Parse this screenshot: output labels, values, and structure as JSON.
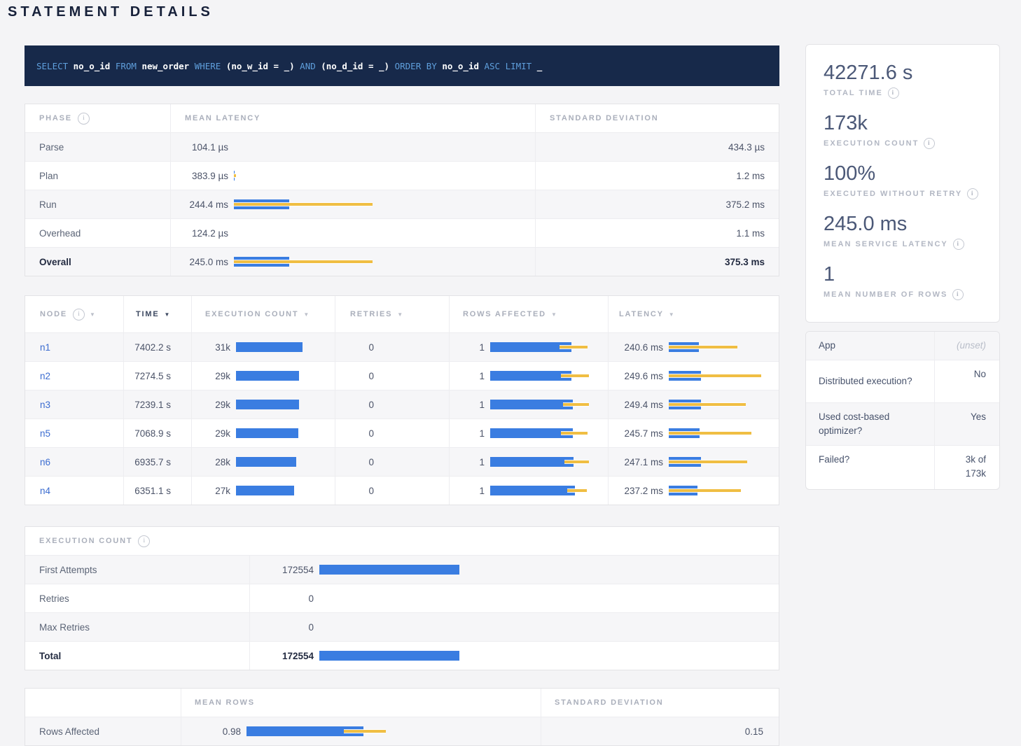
{
  "page": {
    "title": "STATEMENT DETAILS"
  },
  "colors": {
    "bar_mean_blue": "#3a7de1",
    "bar_stddev_yellow": "#f0be43",
    "node_link_blue": "#3b6cd0",
    "sql_background_navy": "#17294a",
    "sql_keyword_blue": "#5f9fdc"
  },
  "query": {
    "tokens": [
      {
        "text": "SELECT",
        "cls": "kw"
      },
      {
        "text": "no_o_id",
        "cls": "id"
      },
      {
        "text": "FROM",
        "cls": "kw"
      },
      {
        "text": "new_order",
        "cls": "id"
      },
      {
        "text": "WHERE",
        "cls": "kw"
      },
      {
        "text": "(no_w_id = _)",
        "cls": "id"
      },
      {
        "text": "AND",
        "cls": "kw"
      },
      {
        "text": "(no_d_id = _)",
        "cls": "id"
      },
      {
        "text": "ORDER BY",
        "cls": "kw"
      },
      {
        "text": "no_o_id",
        "cls": "id"
      },
      {
        "text": "ASC",
        "cls": "kw"
      },
      {
        "text": "LIMIT",
        "cls": "kw"
      },
      {
        "text": "_",
        "cls": "id"
      }
    ]
  },
  "phases": {
    "headers": {
      "phase": "PHASE",
      "mean": "MEAN LATENCY",
      "std": "STANDARD DEVIATION"
    },
    "rows": [
      {
        "label": "Parse",
        "mean": "104.1 µs",
        "std": "434.3 µs",
        "bar": {
          "blue": 0,
          "dev_l": 0,
          "dev_w": 0
        }
      },
      {
        "label": "Plan",
        "mean": "383.9 µs",
        "std": "1.2 ms",
        "bar": {
          "blue": 0.2,
          "dev_l": 0,
          "dev_w": 0.8
        }
      },
      {
        "label": "Run",
        "mean": "244.4 ms",
        "std": "375.2 ms",
        "bar": {
          "blue": 19.5,
          "dev_l": 0,
          "dev_w": 49
        }
      },
      {
        "label": "Overhead",
        "mean": "124.2 µs",
        "std": "1.1 ms",
        "bar": {
          "blue": 0,
          "dev_l": 0,
          "dev_w": 0
        }
      },
      {
        "label": "Overall",
        "mean": "245.0 ms",
        "std": "375.3 ms",
        "bar": {
          "blue": 19.5,
          "dev_l": 0,
          "dev_w": 49
        }
      }
    ]
  },
  "nodes": {
    "headers": {
      "node": "NODE",
      "time": "TIME",
      "exec": "EXECUTION COUNT",
      "retries": "RETRIES",
      "rows": "ROWS AFFECTED",
      "latency": "LATENCY"
    },
    "rows": [
      {
        "node": "n1",
        "time": "7402.2 s",
        "exec": "31k",
        "exec_pct": 88,
        "retries": "0",
        "rows": "1",
        "rows_bar": {
          "blue": 76,
          "dev_l": 65,
          "dev_w": 26
        },
        "latency": "240.6 ms",
        "lat_bar": {
          "blue": 29,
          "dev_l": 0,
          "dev_w": 67
        }
      },
      {
        "node": "n2",
        "time": "7274.5 s",
        "exec": "29k",
        "exec_pct": 83,
        "retries": "0",
        "rows": "1",
        "rows_bar": {
          "blue": 76,
          "dev_l": 66,
          "dev_w": 26
        },
        "latency": "249.6 ms",
        "lat_bar": {
          "blue": 31,
          "dev_l": 0,
          "dev_w": 90
        }
      },
      {
        "node": "n3",
        "time": "7239.1 s",
        "exec": "29k",
        "exec_pct": 83,
        "retries": "0",
        "rows": "1",
        "rows_bar": {
          "blue": 77,
          "dev_l": 68,
          "dev_w": 24
        },
        "latency": "249.4 ms",
        "lat_bar": {
          "blue": 31,
          "dev_l": 0,
          "dev_w": 75
        }
      },
      {
        "node": "n5",
        "time": "7068.9 s",
        "exec": "29k",
        "exec_pct": 82,
        "retries": "0",
        "rows": "1",
        "rows_bar": {
          "blue": 77,
          "dev_l": 66,
          "dev_w": 25
        },
        "latency": "245.7 ms",
        "lat_bar": {
          "blue": 30,
          "dev_l": 0,
          "dev_w": 80
        }
      },
      {
        "node": "n6",
        "time": "6935.7 s",
        "exec": "28k",
        "exec_pct": 80,
        "retries": "0",
        "rows": "1",
        "rows_bar": {
          "blue": 78,
          "dev_l": 69,
          "dev_w": 23
        },
        "latency": "247.1 ms",
        "lat_bar": {
          "blue": 31,
          "dev_l": 0,
          "dev_w": 76
        }
      },
      {
        "node": "n4",
        "time": "6351.1 s",
        "exec": "27k",
        "exec_pct": 77,
        "retries": "0",
        "rows": "1",
        "rows_bar": {
          "blue": 79,
          "dev_l": 72,
          "dev_w": 18
        },
        "latency": "237.2 ms",
        "lat_bar": {
          "blue": 28,
          "dev_l": 0,
          "dev_w": 70
        }
      }
    ]
  },
  "exec_counts": {
    "title": "EXECUTION COUNT",
    "rows": [
      {
        "label": "First Attempts",
        "value": "172554",
        "bar": 31.5
      },
      {
        "label": "Retries",
        "value": "0",
        "bar": 0
      },
      {
        "label": "Max Retries",
        "value": "0",
        "bar": 0
      },
      {
        "label": "Total",
        "value": "172554",
        "bar": 31.5
      }
    ]
  },
  "rows_stats": {
    "headers": {
      "mean": "MEAN ROWS",
      "std": "STANDARD DEVIATION"
    },
    "row": {
      "label": "Rows Affected",
      "mean": "0.98",
      "std": "0.15",
      "bar": {
        "blue": 42,
        "dev_l": 35,
        "dev_w": 15
      }
    }
  },
  "summary": {
    "stats": [
      {
        "value": "42271.6 s",
        "label": "TOTAL TIME"
      },
      {
        "value": "173k",
        "label": "EXECUTION COUNT"
      },
      {
        "value": "100%",
        "label": "EXECUTED WITHOUT RETRY"
      },
      {
        "value": "245.0 ms",
        "label": "MEAN SERVICE LATENCY"
      },
      {
        "value": "1",
        "label": "MEAN NUMBER OF ROWS"
      }
    ]
  },
  "facts": {
    "rows": [
      {
        "label": "App",
        "value": "(unset)",
        "muted": true
      },
      {
        "label": "Distributed execution?",
        "value": "No"
      },
      {
        "label": "Used cost-based optimizer?",
        "value": "Yes"
      },
      {
        "label": "Failed?",
        "value": "3k of 173k"
      }
    ]
  }
}
